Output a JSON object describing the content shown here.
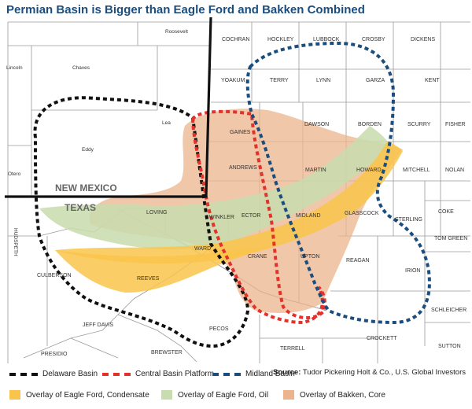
{
  "title": "Permian Basin is Bigger than Eagle Ford and Bakken Combined",
  "states": {
    "new_mexico": "NEW MEXICO",
    "texas": "TEXAS"
  },
  "counties": {
    "roosevelt": "Roosevelt",
    "lincoln": "Lincoln",
    "chaves": "Chaves",
    "lea": "Lea",
    "eddy": "Eddy",
    "otero": "Otero",
    "hudspeth": "HUDSPETH",
    "culberson": "CULBERSON",
    "jeff_davis": "JEFF DAVIS",
    "presidio": "PRESIDIO",
    "brewster": "BREWSTER",
    "pecos": "PECOS",
    "reeves": "REEVES",
    "loving": "LOVING",
    "winkler": "WINKLER",
    "ward": "WARD",
    "crane": "CRANE",
    "ector": "ECTOR",
    "andrews": "ANDREWS",
    "gaines": "GAINES",
    "yoakum": "YOAKUM",
    "cochran": "COCHRAN",
    "hockley": "HOCKLEY",
    "lubbock": "LUBBOCK",
    "crosby": "CROSBY",
    "dickens": "DICKENS",
    "terry": "TERRY",
    "lynn": "LYNN",
    "garza": "GARZA",
    "kent": "KENT",
    "dawson": "DAWSON",
    "borden": "BORDEN",
    "scurry": "SCURRY",
    "fisher": "FISHER",
    "martin": "MARTIN",
    "howard": "HOWARD",
    "mitchell": "MITCHELL",
    "nolan": "NOLAN",
    "midland": "MIDLAND",
    "glasscock": "GLASSCOCK",
    "sterling": "STERLING",
    "coke": "COKE",
    "tom_green": "TOM GREEN",
    "upton": "UPTON",
    "reagan": "REAGAN",
    "irion": "IRION",
    "schleicher": "SCHLEICHER",
    "crockett": "CROCKETT",
    "sutton": "SUTTON",
    "terrell": "TERRELL"
  },
  "legend": {
    "delaware": "Delaware Basin",
    "central": "Central Basin Platform",
    "midland": "Midland Basin",
    "eagle_condensate": "Overlay of Eagle Ford, Condensate",
    "eagle_oil": "Overlay of Eagle Ford, Oil",
    "bakken": "Overlay of Bakken, Core"
  },
  "source": {
    "label": "Source:",
    "text": "Tudor Pickering Holt & Co., U.S. Global Investors"
  },
  "colors": {
    "title": "#1b4e7e",
    "delaware": "#111111",
    "central": "#e3322b",
    "midland": "#1b4e7e",
    "eagle_condensate": "#f9c44b",
    "eagle_oil": "#c8dcae",
    "bakken": "#ecb48c"
  }
}
